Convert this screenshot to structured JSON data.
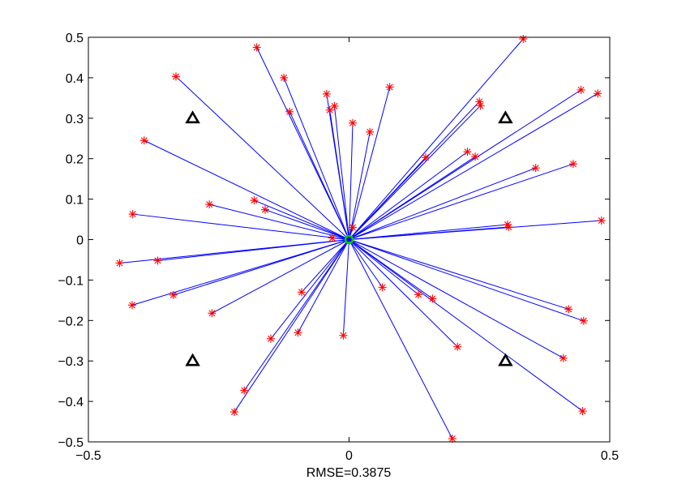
{
  "chart_data": {
    "type": "scatter",
    "xlabel": "RMSE=0.3875",
    "ylabel": "",
    "title": "",
    "xlim": [
      -0.5,
      0.5
    ],
    "ylim": [
      -0.5,
      0.5
    ],
    "xticks": [
      -0.5,
      0,
      0.5
    ],
    "xtick_labels": [
      "−0.5",
      "0",
      "0.5"
    ],
    "yticks": [
      -0.5,
      -0.4,
      -0.3,
      -0.2,
      -0.1,
      0,
      0.1,
      0.2,
      0.3,
      0.4,
      0.5
    ],
    "ytick_labels": [
      "−0.5",
      "−0.4",
      "−0.3",
      "−0.2",
      "−0.1",
      "0",
      "0.1",
      "0.2",
      "0.3",
      "0.4",
      "0.5"
    ],
    "grid": false,
    "colors": {
      "line": "#0000ff",
      "estimate_marker": "#ff0000",
      "anchor_marker": "#000000",
      "center_marker": "#00cc00"
    },
    "center": {
      "x": 0.0,
      "y": 0.0
    },
    "anchors": [
      {
        "x": -0.3,
        "y": 0.3
      },
      {
        "x": 0.3,
        "y": 0.3
      },
      {
        "x": -0.3,
        "y": -0.3
      },
      {
        "x": 0.3,
        "y": -0.3
      }
    ],
    "estimates": [
      {
        "x": -0.177,
        "y": 0.475
      },
      {
        "x": -0.332,
        "y": 0.403
      },
      {
        "x": -0.125,
        "y": 0.4
      },
      {
        "x": 0.078,
        "y": 0.377
      },
      {
        "x": -0.043,
        "y": 0.36
      },
      {
        "x": -0.028,
        "y": 0.33
      },
      {
        "x": -0.114,
        "y": 0.316
      },
      {
        "x": -0.037,
        "y": 0.32
      },
      {
        "x": 0.007,
        "y": 0.288
      },
      {
        "x": 0.04,
        "y": 0.266
      },
      {
        "x": -0.393,
        "y": 0.245
      },
      {
        "x": -0.268,
        "y": 0.087
      },
      {
        "x": -0.182,
        "y": 0.097
      },
      {
        "x": -0.161,
        "y": 0.074
      },
      {
        "x": -0.415,
        "y": 0.063
      },
      {
        "x": 0.007,
        "y": 0.03
      },
      {
        "x": -0.032,
        "y": 0.004
      },
      {
        "x": -0.44,
        "y": -0.058
      },
      {
        "x": -0.367,
        "y": -0.052
      },
      {
        "x": -0.337,
        "y": -0.137
      },
      {
        "x": -0.416,
        "y": -0.162
      },
      {
        "x": -0.263,
        "y": -0.182
      },
      {
        "x": -0.091,
        "y": -0.13
      },
      {
        "x": -0.15,
        "y": -0.245
      },
      {
        "x": -0.098,
        "y": -0.23
      },
      {
        "x": -0.011,
        "y": -0.237
      },
      {
        "x": -0.201,
        "y": -0.373
      },
      {
        "x": -0.22,
        "y": -0.426
      },
      {
        "x": 0.198,
        "y": -0.492
      },
      {
        "x": 0.064,
        "y": -0.118
      },
      {
        "x": 0.133,
        "y": -0.136
      },
      {
        "x": 0.16,
        "y": -0.146
      },
      {
        "x": 0.208,
        "y": -0.265
      },
      {
        "x": 0.334,
        "y": 0.496
      },
      {
        "x": 0.445,
        "y": 0.37
      },
      {
        "x": 0.477,
        "y": 0.361
      },
      {
        "x": 0.25,
        "y": 0.341
      },
      {
        "x": 0.252,
        "y": 0.331
      },
      {
        "x": 0.147,
        "y": 0.203
      },
      {
        "x": 0.227,
        "y": 0.217
      },
      {
        "x": 0.242,
        "y": 0.205
      },
      {
        "x": 0.358,
        "y": 0.177
      },
      {
        "x": 0.43,
        "y": 0.187
      },
      {
        "x": 0.484,
        "y": 0.047
      },
      {
        "x": 0.304,
        "y": 0.037
      },
      {
        "x": 0.306,
        "y": 0.031
      },
      {
        "x": 0.421,
        "y": -0.172
      },
      {
        "x": 0.45,
        "y": -0.201
      },
      {
        "x": 0.411,
        "y": -0.293
      },
      {
        "x": 0.448,
        "y": -0.424
      }
    ]
  }
}
